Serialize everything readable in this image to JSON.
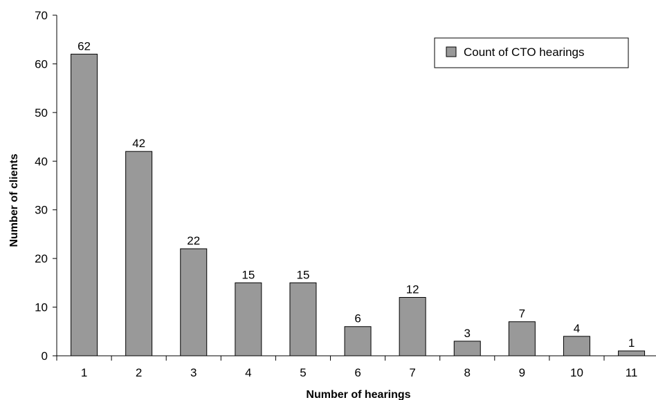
{
  "chart_data": {
    "type": "bar",
    "categories": [
      "1",
      "2",
      "3",
      "4",
      "5",
      "6",
      "7",
      "8",
      "9",
      "10",
      "11"
    ],
    "series": [
      {
        "name": "Count of CTO hearings",
        "values": [
          62,
          42,
          22,
          15,
          15,
          6,
          12,
          3,
          7,
          4,
          1
        ]
      }
    ],
    "xlabel": "Number of hearings",
    "ylabel": "Number of clients",
    "ylim": [
      0,
      70
    ],
    "yticks": [
      0,
      10,
      20,
      30,
      40,
      50,
      60,
      70
    ],
    "grid": false,
    "legend_position": "top-right",
    "colors": {
      "bar_fill": "#999999",
      "bar_stroke": "#000000",
      "axis": "#000000",
      "background": "#ffffff"
    }
  }
}
